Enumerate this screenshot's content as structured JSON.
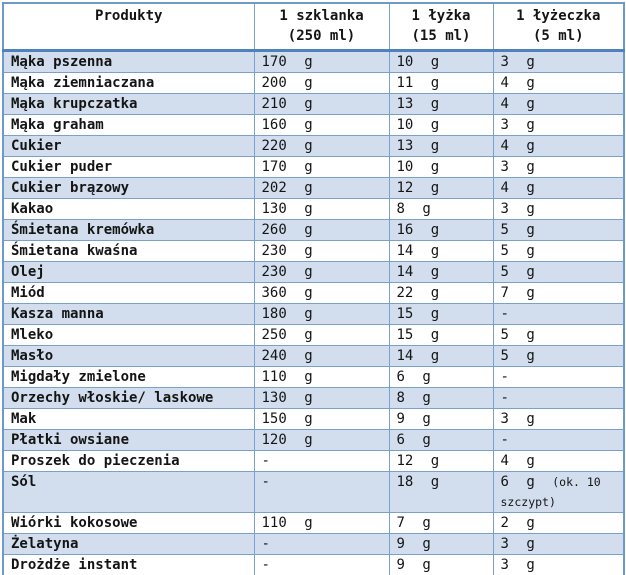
{
  "table": {
    "columns": [
      {
        "label": "Produkty",
        "sub": ""
      },
      {
        "label": "1 szklanka",
        "sub": "(250 ml)"
      },
      {
        "label": "1 łyżka",
        "sub": "(15 ml)"
      },
      {
        "label": "1 łyżeczka",
        "sub": "(5 ml)"
      }
    ],
    "rows": [
      {
        "product": "Mąka pszenna",
        "szklanka": "170 g",
        "lyzka": "10 g",
        "lyzeczka": "3 g"
      },
      {
        "product": "Mąka ziemniaczana",
        "szklanka": "200 g",
        "lyzka": "11 g",
        "lyzeczka": "4 g"
      },
      {
        "product": "Mąka krupczatka",
        "szklanka": "210 g",
        "lyzka": "13 g",
        "lyzeczka": "4 g"
      },
      {
        "product": "Mąka graham",
        "szklanka": "160 g",
        "lyzka": "10 g",
        "lyzeczka": "3 g"
      },
      {
        "product": "Cukier",
        "szklanka": "220 g",
        "lyzka": "13 g",
        "lyzeczka": "4 g"
      },
      {
        "product": "Cukier puder",
        "szklanka": "170 g",
        "lyzka": "10 g",
        "lyzeczka": "3 g"
      },
      {
        "product": "Cukier brązowy",
        "szklanka": "202 g",
        "lyzka": "12 g",
        "lyzeczka": "4 g"
      },
      {
        "product": "Kakao",
        "szklanka": "130 g",
        "lyzka": "8 g",
        "lyzeczka": "3 g"
      },
      {
        "product": "Śmietana kremówka",
        "szklanka": "260 g",
        "lyzka": "16 g",
        "lyzeczka": "5 g"
      },
      {
        "product": "Śmietana kwaśna",
        "szklanka": "230 g",
        "lyzka": "14 g",
        "lyzeczka": "5 g"
      },
      {
        "product": "Olej",
        "szklanka": "230 g",
        "lyzka": "14 g",
        "lyzeczka": "5 g"
      },
      {
        "product": "Miód",
        "szklanka": "360 g",
        "lyzka": "22 g",
        "lyzeczka": "7 g"
      },
      {
        "product": "Kasza manna",
        "szklanka": "180 g",
        "lyzka": "15 g",
        "lyzeczka": "-"
      },
      {
        "product": "Mleko",
        "szklanka": "250 g",
        "lyzka": "15 g",
        "lyzeczka": "5 g"
      },
      {
        "product": "Masło",
        "szklanka": "240 g",
        "lyzka": "14 g",
        "lyzeczka": "5 g"
      },
      {
        "product": "Migdały zmielone",
        "szklanka": "110 g",
        "lyzka": "6 g",
        "lyzeczka": "-"
      },
      {
        "product": "Orzechy włoskie/ laskowe",
        "szklanka": "130 g",
        "lyzka": "8 g",
        "lyzeczka": "-"
      },
      {
        "product": "Mak",
        "szklanka": "150 g",
        "lyzka": "9 g",
        "lyzeczka": "3 g"
      },
      {
        "product": "Płatki owsiane",
        "szklanka": "120 g",
        "lyzka": "6 g",
        "lyzeczka": "-"
      },
      {
        "product": "Proszek do pieczenia",
        "szklanka": "-",
        "lyzka": "12 g",
        "lyzeczka": "4 g"
      },
      {
        "product": "Sól",
        "szklanka": "-",
        "lyzka": "18 g",
        "lyzeczka": "6 g",
        "lyzeczka_note": "(ok. 10 szczypt)"
      },
      {
        "product": "Wiórki kokosowe",
        "szklanka": "110 g",
        "lyzka": "7 g",
        "lyzeczka": "2 g"
      },
      {
        "product": "Żelatyna",
        "szklanka": "-",
        "lyzka": "9 g",
        "lyzeczka": "3 g"
      },
      {
        "product": "Drożdże instant",
        "szklanka": "-",
        "lyzka": "9 g",
        "lyzeczka": "3 g"
      }
    ],
    "colors": {
      "band": "#d2deee",
      "border": "#7ba0cd",
      "header_rule": "#4f81bd"
    }
  }
}
